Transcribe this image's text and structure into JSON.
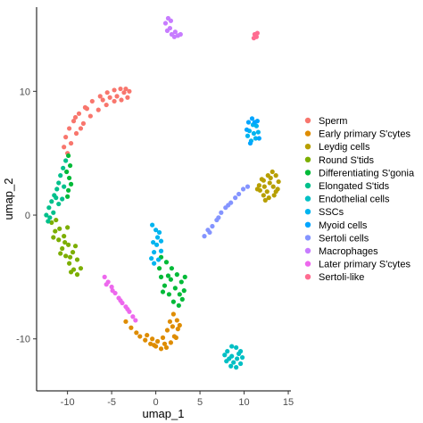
{
  "chart_data": {
    "type": "scatter",
    "title": "",
    "xlabel": "umap_1",
    "ylabel": "umap_2",
    "xlim": [
      -13.5,
      15.3
    ],
    "ylim": [
      -14.2,
      16.8
    ],
    "xticks": [
      -10,
      -5,
      0,
      5,
      10,
      15
    ],
    "yticks": [
      10,
      0,
      -10
    ],
    "grid": false,
    "legend_position": "right",
    "series": [
      {
        "name": "Sperm",
        "color": "#F8766D",
        "points": [
          [
            -10.4,
            5.5
          ],
          [
            -10.2,
            6.3
          ],
          [
            -9.8,
            7.0
          ],
          [
            -9.3,
            7.6
          ],
          [
            -8.7,
            8.2
          ],
          [
            -8.0,
            8.7
          ],
          [
            -7.2,
            9.2
          ],
          [
            -6.3,
            9.6
          ],
          [
            -5.5,
            9.9
          ],
          [
            -4.7,
            10.1
          ],
          [
            -4.0,
            10.2
          ],
          [
            -3.4,
            10.2
          ],
          [
            -3.0,
            10.0
          ],
          [
            -3.2,
            9.5
          ],
          [
            -3.9,
            9.3
          ],
          [
            -4.7,
            9.2
          ],
          [
            -5.6,
            8.9
          ],
          [
            -6.5,
            8.5
          ],
          [
            -7.4,
            8.0
          ],
          [
            -8.2,
            7.4
          ],
          [
            -9.0,
            6.6
          ],
          [
            -9.6,
            5.8
          ],
          [
            -10.0,
            5.0
          ],
          [
            -9.1,
            7.9
          ],
          [
            -7.8,
            8.6
          ],
          [
            -6.0,
            9.3
          ],
          [
            -4.4,
            9.6
          ],
          [
            -3.6,
            9.9
          ],
          [
            -5.2,
            9.5
          ],
          [
            -8.5,
            7.0
          ]
        ]
      },
      {
        "name": "Early primary S'cytes",
        "color": "#DE8C00",
        "points": [
          [
            -1.8,
            -9.8
          ],
          [
            -1.2,
            -10.1
          ],
          [
            -0.6,
            -10.4
          ],
          [
            0.0,
            -10.6
          ],
          [
            0.6,
            -10.8
          ],
          [
            1.2,
            -10.7
          ],
          [
            1.7,
            -10.3
          ],
          [
            2.1,
            -9.8
          ],
          [
            2.5,
            -9.2
          ],
          [
            2.4,
            -8.5
          ],
          [
            2.0,
            -8.0
          ],
          [
            1.6,
            -8.6
          ],
          [
            1.3,
            -9.3
          ],
          [
            0.8,
            -9.9
          ],
          [
            0.2,
            -10.2
          ],
          [
            -0.4,
            -10.0
          ],
          [
            -1.0,
            -9.7
          ],
          [
            -2.2,
            -9.5
          ],
          [
            -2.8,
            -9.1
          ],
          [
            -3.4,
            -8.6
          ],
          [
            2.7,
            -8.9
          ],
          [
            1.0,
            -10.4
          ],
          [
            -0.2,
            -10.5
          ],
          [
            2.3,
            -9.9
          ],
          [
            1.9,
            -9.0
          ]
        ]
      },
      {
        "name": "Leydig cells",
        "color": "#B79F00",
        "points": [
          [
            11.7,
            2.4
          ],
          [
            12.2,
            2.8
          ],
          [
            12.7,
            3.2
          ],
          [
            13.2,
            3.5
          ],
          [
            13.6,
            3.2
          ],
          [
            13.9,
            2.7
          ],
          [
            13.8,
            2.1
          ],
          [
            13.4,
            1.6
          ],
          [
            12.8,
            1.4
          ],
          [
            12.2,
            1.6
          ],
          [
            11.8,
            2.0
          ],
          [
            12.3,
            2.3
          ],
          [
            12.9,
            2.6
          ],
          [
            13.3,
            2.3
          ],
          [
            12.6,
            1.9
          ],
          [
            13.0,
            3.0
          ],
          [
            12.0,
            2.9
          ],
          [
            13.6,
            1.9
          ],
          [
            12.4,
            1.2
          ],
          [
            11.5,
            2.1
          ]
        ]
      },
      {
        "name": "Round S'tids",
        "color": "#7CAE00",
        "points": [
          [
            -11.8,
            -0.6
          ],
          [
            -11.4,
            -1.3
          ],
          [
            -11.0,
            -2.0
          ],
          [
            -10.6,
            -2.7
          ],
          [
            -10.2,
            -3.3
          ],
          [
            -9.8,
            -3.9
          ],
          [
            -9.3,
            -4.4
          ],
          [
            -8.9,
            -4.8
          ],
          [
            -8.5,
            -4.3
          ],
          [
            -8.9,
            -3.6
          ],
          [
            -9.4,
            -3.0
          ],
          [
            -9.9,
            -2.4
          ],
          [
            -10.4,
            -1.7
          ],
          [
            -10.9,
            -1.1
          ],
          [
            -11.3,
            -0.4
          ],
          [
            -10.0,
            -1.0
          ],
          [
            -9.6,
            -4.6
          ],
          [
            -10.8,
            -3.1
          ],
          [
            -9.1,
            -2.5
          ],
          [
            -11.6,
            -1.8
          ],
          [
            -10.3,
            -2.2
          ],
          [
            -9.7,
            -3.4
          ]
        ]
      },
      {
        "name": "Differentiating S'gonia",
        "color": "#00BA38",
        "points": [
          [
            0.6,
            -3.4
          ],
          [
            1.2,
            -3.8
          ],
          [
            1.8,
            -4.3
          ],
          [
            2.4,
            -4.8
          ],
          [
            2.9,
            -5.4
          ],
          [
            3.2,
            -6.1
          ],
          [
            3.0,
            -6.8
          ],
          [
            2.6,
            -7.3
          ],
          [
            2.0,
            -7.0
          ],
          [
            1.5,
            -6.4
          ],
          [
            1.0,
            -5.7
          ],
          [
            0.6,
            -5.0
          ],
          [
            0.4,
            -4.3
          ],
          [
            1.4,
            -4.9
          ],
          [
            2.2,
            -5.9
          ],
          [
            2.7,
            -6.4
          ],
          [
            1.7,
            -5.2
          ],
          [
            -9.9,
            2.0
          ],
          [
            -9.8,
            3.0
          ],
          [
            -9.7,
            4.0
          ],
          [
            -9.9,
            4.8
          ],
          [
            -10.1,
            3.5
          ],
          [
            -9.6,
            2.5
          ],
          [
            -10.0,
            1.5
          ],
          [
            3.3,
            -5.0
          ],
          [
            0.8,
            -6.2
          ]
        ]
      },
      {
        "name": "Elongated S'tids",
        "color": "#00C08B",
        "points": [
          [
            -12.4,
            0.0
          ],
          [
            -12.1,
            0.6
          ],
          [
            -11.8,
            1.1
          ],
          [
            -11.5,
            1.6
          ],
          [
            -11.2,
            2.1
          ],
          [
            -11.0,
            2.6
          ],
          [
            -10.8,
            3.2
          ],
          [
            -10.5,
            3.8
          ],
          [
            -10.2,
            4.4
          ],
          [
            -11.6,
            0.2
          ],
          [
            -11.0,
            0.9
          ],
          [
            -10.6,
            1.3
          ],
          [
            -12.2,
            -0.5
          ],
          [
            -10.4,
            2.3
          ],
          [
            -11.3,
            1.4
          ],
          [
            -12.0,
            -0.2
          ]
        ]
      },
      {
        "name": "Endothelial cells",
        "color": "#00BFC4",
        "points": [
          [
            8.1,
            -11.0
          ],
          [
            8.6,
            -10.6
          ],
          [
            9.1,
            -10.7
          ],
          [
            9.6,
            -11.0
          ],
          [
            9.8,
            -11.5
          ],
          [
            9.6,
            -12.0
          ],
          [
            9.1,
            -12.3
          ],
          [
            8.5,
            -12.2
          ],
          [
            8.0,
            -11.8
          ],
          [
            7.8,
            -11.3
          ],
          [
            8.6,
            -11.4
          ],
          [
            9.2,
            -11.6
          ],
          [
            8.8,
            -11.9
          ],
          [
            8.3,
            -11.6
          ],
          [
            9.4,
            -11.2
          ]
        ]
      },
      {
        "name": "SSCs",
        "color": "#00B4EF",
        "points": [
          [
            -0.4,
            -0.8
          ],
          [
            0.0,
            -1.2
          ],
          [
            0.2,
            -1.8
          ],
          [
            0.1,
            -2.4
          ],
          [
            -0.2,
            -3.0
          ],
          [
            -0.5,
            -3.5
          ],
          [
            -0.2,
            -3.9
          ],
          [
            0.3,
            -3.6
          ],
          [
            0.6,
            -2.9
          ],
          [
            0.6,
            -2.1
          ],
          [
            0.4,
            -1.4
          ],
          [
            -0.3,
            -2.2
          ],
          [
            10.6,
            6.8
          ],
          [
            11.0,
            7.3
          ],
          [
            11.4,
            7.2
          ],
          [
            11.6,
            6.7
          ],
          [
            11.3,
            6.2
          ],
          [
            10.8,
            6.0
          ],
          [
            10.4,
            6.4
          ],
          [
            11.1,
            6.6
          ]
        ]
      },
      {
        "name": "Myoid cells",
        "color": "#00A5FF",
        "points": [
          [
            10.5,
            7.5
          ],
          [
            10.9,
            7.8
          ],
          [
            11.5,
            7.6
          ],
          [
            11.7,
            6.2
          ],
          [
            10.3,
            6.9
          ],
          [
            11.2,
            7.5
          ],
          [
            10.7,
            5.8
          ]
        ]
      },
      {
        "name": "Sertoli cells",
        "color": "#8494FF",
        "points": [
          [
            5.5,
            -1.7
          ],
          [
            5.9,
            -1.2
          ],
          [
            6.4,
            -0.9
          ],
          [
            6.9,
            -0.4
          ],
          [
            7.4,
            0.2
          ],
          [
            7.9,
            0.6
          ],
          [
            8.5,
            1.0
          ],
          [
            9.0,
            1.4
          ],
          [
            9.4,
            1.7
          ],
          [
            6.1,
            -1.4
          ],
          [
            7.1,
            -0.2
          ],
          [
            8.2,
            0.8
          ],
          [
            9.9,
            2.1
          ],
          [
            10.4,
            2.3
          ]
        ]
      },
      {
        "name": "Macrophages",
        "color": "#C77CFF",
        "points": [
          [
            1.1,
            15.5
          ],
          [
            1.4,
            15.9
          ],
          [
            1.7,
            15.7
          ],
          [
            1.6,
            15.1
          ],
          [
            1.8,
            14.6
          ],
          [
            2.1,
            14.4
          ],
          [
            2.5,
            14.5
          ],
          [
            2.8,
            14.6
          ],
          [
            1.3,
            14.9
          ],
          [
            2.2,
            14.8
          ]
        ]
      },
      {
        "name": "Later primary S'cytes",
        "color": "#ED68ED",
        "points": [
          [
            -5.8,
            -5.0
          ],
          [
            -5.4,
            -5.4
          ],
          [
            -5.0,
            -5.8
          ],
          [
            -4.6,
            -6.3
          ],
          [
            -4.2,
            -6.7
          ],
          [
            -3.8,
            -7.1
          ],
          [
            -3.4,
            -7.4
          ],
          [
            -3.0,
            -7.8
          ],
          [
            -2.6,
            -8.2
          ],
          [
            -2.3,
            -8.5
          ],
          [
            -5.6,
            -5.6
          ],
          [
            -4.9,
            -6.1
          ],
          [
            -4.0,
            -6.9
          ],
          [
            -3.2,
            -7.6
          ]
        ]
      },
      {
        "name": "Sertoli-like",
        "color": "#FF6C91",
        "points": [
          [
            11.2,
            14.6
          ],
          [
            11.4,
            14.4
          ],
          [
            11.1,
            14.3
          ],
          [
            11.5,
            14.7
          ]
        ]
      }
    ]
  }
}
